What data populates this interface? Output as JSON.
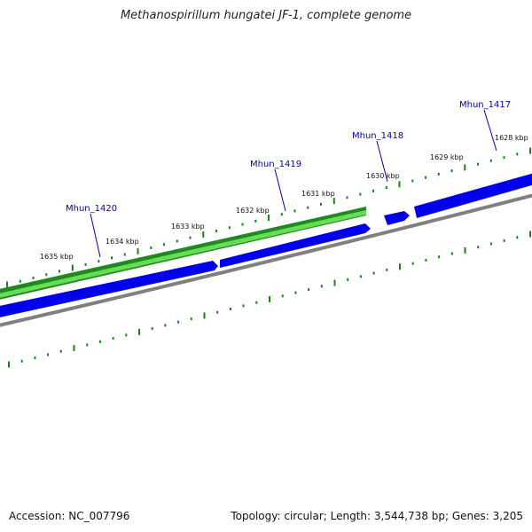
{
  "title": "Methanospirillum hungatei JF-1, complete genome",
  "footer": {
    "accession": "Accession: NC_007796",
    "summary": "Topology: circular; Length: 3,544,738 bp; Genes: 3,205"
  },
  "colors": {
    "gene": "#33cc33",
    "cds": "#0000ee",
    "backbone": "#808080",
    "tick": "#118811",
    "label": "#0000b4"
  },
  "scale_labels": [
    "1628 kbp",
    "1629 kbp",
    "1630 kbp",
    "1631 kbp",
    "1632 kbp",
    "1633 kbp",
    "1634 kbp",
    "1635 kbp"
  ],
  "genes": [
    {
      "label": "Mhun_1417"
    },
    {
      "label": "Mhun_1418"
    },
    {
      "label": "Mhun_1419"
    },
    {
      "label": "Mhun_1420"
    }
  ]
}
